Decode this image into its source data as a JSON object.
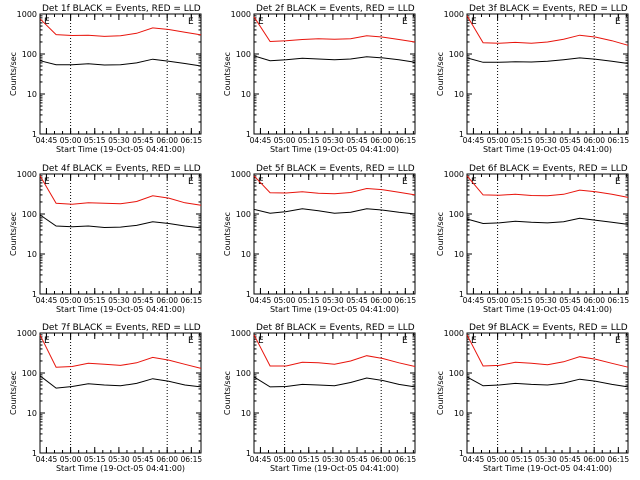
{
  "x_tick_labels": [
    "04:45",
    "05:00",
    "05:15",
    "05:30",
    "05:45",
    "06:00",
    "06:15"
  ],
  "y_tick_labels": [
    "1",
    "10",
    "100",
    "1000"
  ],
  "ylabel": "Counts/sec",
  "xlabel": "Start Time (19-Oct-05 04:41:00)",
  "marker_letter": "E",
  "colors": {
    "events": "#000000",
    "lld": "#e8140c",
    "axes": "#000000",
    "background": "#ffffff"
  },
  "chart_data": [
    {
      "type": "line",
      "title": "Det 1f BLACK = Events, RED = LLD",
      "x_minutes": [
        0,
        10,
        20,
        30,
        40,
        50,
        60,
        70,
        80,
        90,
        100
      ],
      "series": [
        {
          "name": "Events",
          "color": "#000000",
          "y": [
            68,
            54,
            54,
            57,
            53,
            54,
            60,
            74,
            66,
            58,
            50
          ]
        },
        {
          "name": "LLD",
          "color": "#e8140c",
          "y": [
            760,
            305,
            290,
            295,
            275,
            285,
            330,
            450,
            410,
            350,
            300
          ]
        }
      ],
      "xlim": [
        "04:41",
        "06:21"
      ],
      "ylim": [
        1,
        1000
      ],
      "yscale": "log",
      "vlines": [
        "05:00",
        "06:00"
      ],
      "grid": false
    },
    {
      "type": "line",
      "title": "Det 2f BLACK = Events, RED = LLD",
      "x_minutes": [
        0,
        10,
        20,
        30,
        40,
        50,
        60,
        70,
        80,
        90,
        100
      ],
      "series": [
        {
          "name": "Events",
          "color": "#000000",
          "y": [
            90,
            68,
            72,
            78,
            75,
            72,
            75,
            85,
            80,
            72,
            62
          ]
        },
        {
          "name": "LLD",
          "color": "#e8140c",
          "y": [
            850,
            205,
            215,
            230,
            240,
            235,
            240,
            285,
            265,
            230,
            200
          ]
        }
      ],
      "xlim": [
        "04:41",
        "06:21"
      ],
      "ylim": [
        1,
        1000
      ],
      "yscale": "log",
      "vlines": [
        "05:00",
        "06:00"
      ],
      "grid": false
    },
    {
      "type": "line",
      "title": "Det 3f BLACK = Events, RED = LLD",
      "x_minutes": [
        0,
        10,
        20,
        30,
        40,
        50,
        60,
        70,
        80,
        90,
        100
      ],
      "series": [
        {
          "name": "Events",
          "color": "#000000",
          "y": [
            80,
            62,
            62,
            64,
            63,
            66,
            72,
            80,
            74,
            66,
            58
          ]
        },
        {
          "name": "LLD",
          "color": "#e8140c",
          "y": [
            900,
            190,
            185,
            195,
            185,
            200,
            235,
            295,
            265,
            215,
            165
          ]
        }
      ],
      "xlim": [
        "04:41",
        "06:21"
      ],
      "ylim": [
        1,
        1000
      ],
      "yscale": "log",
      "vlines": [
        "05:00",
        "06:00"
      ],
      "grid": false
    },
    {
      "type": "line",
      "title": "Det 4f BLACK = Events, RED = LLD",
      "x_minutes": [
        0,
        10,
        20,
        30,
        40,
        50,
        60,
        70,
        80,
        90,
        100
      ],
      "series": [
        {
          "name": "Events",
          "color": "#000000",
          "y": [
            95,
            50,
            48,
            50,
            46,
            47,
            52,
            64,
            58,
            50,
            45
          ]
        },
        {
          "name": "LLD",
          "color": "#e8140c",
          "y": [
            900,
            185,
            175,
            190,
            185,
            180,
            205,
            285,
            250,
            190,
            165
          ]
        }
      ],
      "xlim": [
        "04:41",
        "06:21"
      ],
      "ylim": [
        1,
        1000
      ],
      "yscale": "log",
      "vlines": [
        "05:00",
        "06:00"
      ],
      "grid": false
    },
    {
      "type": "line",
      "title": "Det 5f BLACK = Events, RED = LLD",
      "x_minutes": [
        0,
        10,
        20,
        30,
        40,
        50,
        60,
        70,
        80,
        90,
        100
      ],
      "series": [
        {
          "name": "Events",
          "color": "#000000",
          "y": [
            130,
            105,
            115,
            135,
            120,
            105,
            110,
            135,
            125,
            110,
            100
          ]
        },
        {
          "name": "LLD",
          "color": "#e8140c",
          "y": [
            900,
            340,
            335,
            360,
            330,
            320,
            345,
            435,
            405,
            350,
            300
          ]
        }
      ],
      "xlim": [
        "04:41",
        "06:21"
      ],
      "ylim": [
        1,
        1000
      ],
      "yscale": "log",
      "vlines": [
        "05:00",
        "06:00"
      ],
      "grid": false
    },
    {
      "type": "line",
      "title": "Det 6f BLACK = Events, RED = LLD",
      "x_minutes": [
        0,
        10,
        20,
        30,
        40,
        50,
        60,
        70,
        80,
        90,
        100
      ],
      "series": [
        {
          "name": "Events",
          "color": "#000000",
          "y": [
            75,
            58,
            60,
            66,
            62,
            60,
            64,
            78,
            70,
            62,
            55
          ]
        },
        {
          "name": "LLD",
          "color": "#e8140c",
          "y": [
            900,
            300,
            295,
            310,
            290,
            285,
            310,
            395,
            360,
            310,
            260
          ]
        }
      ],
      "xlim": [
        "04:41",
        "06:21"
      ],
      "ylim": [
        1,
        1000
      ],
      "yscale": "log",
      "vlines": [
        "05:00",
        "06:00"
      ],
      "grid": false
    },
    {
      "type": "line",
      "title": "Det 7f BLACK = Events, RED = LLD",
      "x_minutes": [
        0,
        10,
        20,
        30,
        40,
        50,
        60,
        70,
        80,
        90,
        100
      ],
      "series": [
        {
          "name": "Events",
          "color": "#000000",
          "y": [
            85,
            42,
            46,
            54,
            50,
            48,
            55,
            72,
            62,
            50,
            45
          ]
        },
        {
          "name": "LLD",
          "color": "#e8140c",
          "y": [
            900,
            140,
            145,
            175,
            165,
            155,
            180,
            245,
            210,
            165,
            130
          ]
        }
      ],
      "xlim": [
        "04:41",
        "06:21"
      ],
      "ylim": [
        1,
        1000
      ],
      "yscale": "log",
      "vlines": [
        "05:00",
        "06:00"
      ],
      "grid": false
    },
    {
      "type": "line",
      "title": "Det 8f BLACK = Events, RED = LLD",
      "x_minutes": [
        0,
        10,
        20,
        30,
        40,
        50,
        60,
        70,
        80,
        90,
        100
      ],
      "series": [
        {
          "name": "Events",
          "color": "#000000",
          "y": [
            80,
            45,
            46,
            52,
            50,
            48,
            58,
            75,
            65,
            52,
            45
          ]
        },
        {
          "name": "LLD",
          "color": "#e8140c",
          "y": [
            900,
            150,
            150,
            185,
            180,
            165,
            200,
            270,
            230,
            180,
            145
          ]
        }
      ],
      "xlim": [
        "04:41",
        "06:21"
      ],
      "ylim": [
        1,
        1000
      ],
      "yscale": "log",
      "vlines": [
        "05:00",
        "06:00"
      ],
      "grid": false
    },
    {
      "type": "line",
      "title": "Det 9f BLACK = Events, RED = LLD",
      "x_minutes": [
        0,
        10,
        20,
        30,
        40,
        50,
        60,
        70,
        80,
        90,
        100
      ],
      "series": [
        {
          "name": "Events",
          "color": "#000000",
          "y": [
            80,
            48,
            50,
            55,
            52,
            50,
            56,
            70,
            62,
            52,
            45
          ]
        },
        {
          "name": "LLD",
          "color": "#e8140c",
          "y": [
            900,
            150,
            155,
            185,
            175,
            160,
            190,
            255,
            220,
            175,
            140
          ]
        }
      ],
      "xlim": [
        "04:41",
        "06:21"
      ],
      "ylim": [
        1,
        1000
      ],
      "yscale": "log",
      "vlines": [
        "05:00",
        "06:00"
      ],
      "grid": false
    }
  ]
}
